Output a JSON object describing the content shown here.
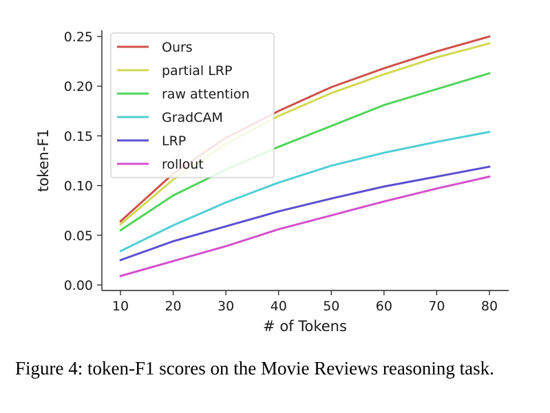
{
  "chart_data": {
    "type": "line",
    "title": "",
    "xlabel": "# of Tokens",
    "ylabel": "token-F1",
    "x": [
      10,
      20,
      30,
      40,
      50,
      60,
      70,
      80
    ],
    "xlim": [
      10,
      80
    ],
    "ylim": [
      0.0,
      0.25
    ],
    "xticks": [
      "10",
      "20",
      "30",
      "40",
      "50",
      "60",
      "70",
      "80"
    ],
    "yticks": [
      "0.00",
      "0.05",
      "0.10",
      "0.15",
      "0.20",
      "0.25"
    ],
    "grid": false,
    "legend_position": "top-left",
    "series": [
      {
        "name": "Ours",
        "color": "#d0504a",
        "values": [
          0.064,
          0.112,
          0.148,
          0.175,
          0.199,
          0.218,
          0.235,
          0.25
        ]
      },
      {
        "name": "partial LRP",
        "color": "#d2d850",
        "values": [
          0.061,
          0.106,
          0.142,
          0.17,
          0.193,
          0.212,
          0.229,
          0.243
        ]
      },
      {
        "name": "raw attention",
        "color": "#4fd458",
        "values": [
          0.055,
          0.09,
          0.116,
          0.139,
          0.16,
          0.181,
          0.197,
          0.213
        ]
      },
      {
        "name": "GradCAM",
        "color": "#4fcfd4",
        "values": [
          0.034,
          0.06,
          0.083,
          0.103,
          0.12,
          0.133,
          0.144,
          0.154
        ]
      },
      {
        "name": "LRP",
        "color": "#5a4fd0",
        "values": [
          0.025,
          0.044,
          0.059,
          0.074,
          0.087,
          0.099,
          0.109,
          0.119
        ]
      },
      {
        "name": "rollout",
        "color": "#d44fcc",
        "values": [
          0.009,
          0.024,
          0.039,
          0.056,
          0.07,
          0.084,
          0.097,
          0.109
        ]
      }
    ]
  },
  "caption": "Figure 4: token-F1 scores on the Movie Reviews reasoning task."
}
